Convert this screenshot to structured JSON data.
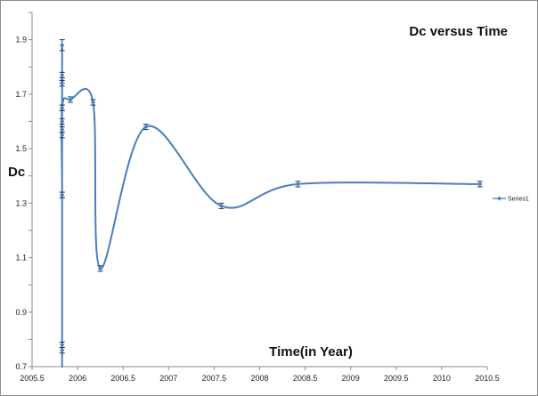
{
  "chart_data": {
    "type": "scatter",
    "title": "Dc   versus   Time",
    "xlabel": "Time(in Year)",
    "ylabel": "Dc",
    "xlim": [
      2005.5,
      2010.5
    ],
    "ylim": [
      0.7,
      2.0
    ],
    "x_ticks": [
      2005.5,
      2006,
      2006.5,
      2007,
      2007.5,
      2008,
      2008.5,
      2009,
      2009.5,
      2010,
      2010.5
    ],
    "x_tick_labels": [
      "2005.5",
      "2006",
      "2006.5",
      "2007",
      "2007.5",
      "2008",
      "2008.5",
      "2009",
      "2009.5",
      "2010",
      "2010.5"
    ],
    "y_ticks": [
      0.7,
      0.9,
      1.1,
      1.3,
      1.5,
      1.7,
      1.9
    ],
    "y_tick_labels": [
      "0.7",
      "0.9",
      "1.1",
      "1.3",
      "1.5",
      "1.7",
      "1.9"
    ],
    "grid": false,
    "legend_position": "right",
    "series": [
      {
        "name": "Series1",
        "color": "#4a7ebb",
        "smooth": true,
        "x": [
          2005.83,
          2005.83,
          2005.83,
          2005.83,
          2005.83,
          2005.83,
          2005.83,
          2005.83,
          2005.83,
          2005.83,
          2005.83,
          2005.83,
          2005.83,
          2005.92,
          2006.17,
          2006.25,
          2006.75,
          2007.58,
          2008.42,
          2010.42
        ],
        "y": [
          1.88,
          1.77,
          1.75,
          1.74,
          1.65,
          1.6,
          1.57,
          1.55,
          1.33,
          0.78,
          0.76,
          1.33,
          1.65,
          1.68,
          1.67,
          1.06,
          1.58,
          1.29,
          1.37,
          1.37
        ],
        "error": [
          0.02,
          0.01,
          0.01,
          0.01,
          0.01,
          0.01,
          0.01,
          0.01,
          0.01,
          0.01,
          0.01,
          0.01,
          0.01,
          0.01,
          0.01,
          0.01,
          0.01,
          0.01,
          0.01,
          0.01
        ]
      }
    ]
  },
  "colors": {
    "series": "#4a7ebb",
    "axis": "#8c8c8c"
  }
}
